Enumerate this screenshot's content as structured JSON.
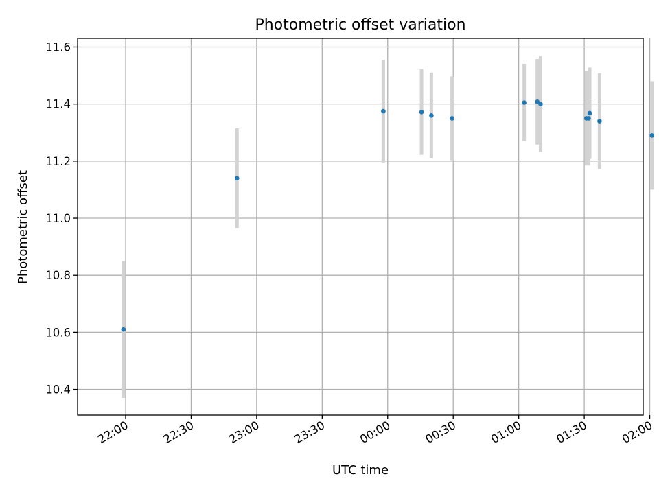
{
  "chart_data": {
    "type": "scatter",
    "title": "Photometric offset variation",
    "xlabel": "UTC time",
    "ylabel": "Photometric offset",
    "x_unit": "minutes since 22:00 UTC",
    "xlim": [
      -22,
      237
    ],
    "ylim": [
      10.31,
      11.63
    ],
    "x_ticks": [
      {
        "value": 0,
        "label": "22:00"
      },
      {
        "value": 30,
        "label": "22:30"
      },
      {
        "value": 60,
        "label": "23:00"
      },
      {
        "value": 90,
        "label": "23:30"
      },
      {
        "value": 120,
        "label": "00:00"
      },
      {
        "value": 150,
        "label": "00:30"
      },
      {
        "value": 180,
        "label": "01:00"
      },
      {
        "value": 210,
        "label": "01:30"
      },
      {
        "value": 240,
        "label": "02:00"
      }
    ],
    "y_ticks": [
      10.4,
      10.6,
      10.8,
      11.0,
      11.2,
      11.4,
      11.6
    ],
    "y_tick_labels": [
      "10.4",
      "10.6",
      "10.8",
      "11.0",
      "11.2",
      "11.4",
      "11.6"
    ],
    "grid": true,
    "marker_color": "#1f77b4",
    "errorbar_color": "#d3d3d3",
    "points": [
      {
        "x": -1.0,
        "y": 10.61,
        "err": 0.24
      },
      {
        "x": 51.0,
        "y": 11.14,
        "err": 0.175
      },
      {
        "x": 118.0,
        "y": 11.375,
        "err": 0.18
      },
      {
        "x": 135.5,
        "y": 11.372,
        "err": 0.15
      },
      {
        "x": 140.0,
        "y": 11.36,
        "err": 0.15
      },
      {
        "x": 149.5,
        "y": 11.35,
        "err": 0.147
      },
      {
        "x": 182.5,
        "y": 11.405,
        "err": 0.135
      },
      {
        "x": 188.5,
        "y": 11.408,
        "err": 0.15
      },
      {
        "x": 190.0,
        "y": 11.4,
        "err": 0.168
      },
      {
        "x": 211.0,
        "y": 11.35,
        "err": 0.165
      },
      {
        "x": 212.0,
        "y": 11.35,
        "err": 0.165
      },
      {
        "x": 212.5,
        "y": 11.368,
        "err": 0.16
      },
      {
        "x": 217.0,
        "y": 11.34,
        "err": 0.168
      },
      {
        "x": 241.0,
        "y": 11.29,
        "err": 0.19
      }
    ]
  }
}
